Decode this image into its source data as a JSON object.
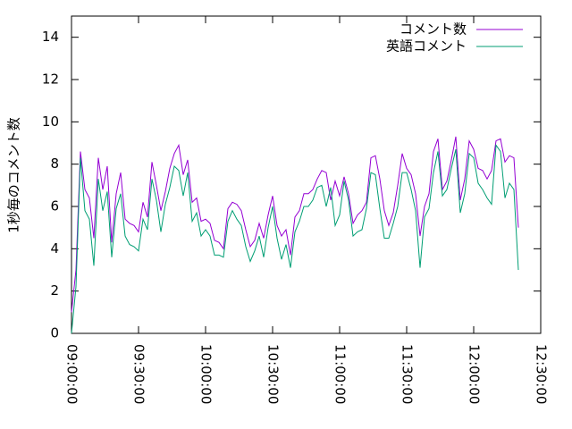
{
  "chart_data": {
    "type": "line",
    "y_label": "1秒毎のコメント数",
    "x": [
      "09:00:00",
      "09:02:00",
      "09:04:00",
      "09:06:00",
      "09:08:00",
      "09:10:00",
      "09:12:00",
      "09:14:00",
      "09:16:00",
      "09:18:00",
      "09:20:00",
      "09:22:00",
      "09:24:00",
      "09:26:00",
      "09:28:00",
      "09:30:00",
      "09:32:00",
      "09:34:00",
      "09:36:00",
      "09:38:00",
      "09:40:00",
      "09:42:00",
      "09:44:00",
      "09:46:00",
      "09:48:00",
      "09:50:00",
      "09:52:00",
      "09:54:00",
      "09:56:00",
      "09:58:00",
      "10:00:00",
      "10:02:00",
      "10:04:00",
      "10:06:00",
      "10:08:00",
      "10:10:00",
      "10:12:00",
      "10:14:00",
      "10:16:00",
      "10:18:00",
      "10:20:00",
      "10:22:00",
      "10:24:00",
      "10:26:00",
      "10:28:00",
      "10:30:00",
      "10:32:00",
      "10:34:00",
      "10:36:00",
      "10:38:00",
      "10:40:00",
      "10:42:00",
      "10:44:00",
      "10:46:00",
      "10:48:00",
      "10:50:00",
      "10:52:00",
      "10:54:00",
      "10:56:00",
      "10:58:00",
      "11:00:00",
      "11:02:00",
      "11:04:00",
      "11:06:00",
      "11:08:00",
      "11:10:00",
      "11:12:00",
      "11:14:00",
      "11:16:00",
      "11:18:00",
      "11:20:00",
      "11:22:00",
      "11:24:00",
      "11:26:00",
      "11:28:00",
      "11:30:00",
      "11:32:00",
      "11:34:00",
      "11:36:00",
      "11:38:00",
      "11:40:00",
      "11:42:00",
      "11:44:00",
      "11:46:00",
      "11:48:00",
      "11:50:00",
      "11:52:00",
      "11:54:00",
      "11:56:00",
      "11:58:00",
      "12:00:00",
      "12:02:00",
      "12:04:00",
      "12:06:00",
      "12:08:00",
      "12:10:00",
      "12:12:00",
      "12:14:00",
      "12:16:00",
      "12:18:00",
      "12:20:00"
    ],
    "series": [
      {
        "name": "コメント数",
        "color": "#9400d3",
        "values": [
          1.0,
          3.0,
          8.6,
          6.8,
          6.4,
          4.5,
          8.3,
          6.8,
          7.9,
          4.3,
          6.6,
          7.6,
          5.4,
          5.2,
          5.1,
          4.8,
          6.2,
          5.5,
          8.1,
          7.0,
          5.8,
          6.7,
          7.8,
          8.5,
          8.9,
          7.5,
          8.2,
          6.2,
          6.4,
          5.3,
          5.4,
          5.2,
          4.4,
          4.3,
          4.0,
          5.9,
          6.2,
          6.1,
          5.8,
          4.9,
          4.1,
          4.4,
          5.2,
          4.5,
          5.6,
          6.5,
          5.1,
          4.6,
          4.9,
          3.7,
          5.5,
          5.8,
          6.6,
          6.6,
          6.8,
          7.3,
          7.7,
          7.6,
          6.3,
          7.2,
          6.5,
          7.4,
          6.6,
          5.2,
          5.6,
          5.8,
          6.2,
          8.3,
          8.4,
          7.3,
          5.8,
          5.1,
          5.7,
          7.0,
          8.5,
          7.8,
          7.5,
          6.6,
          4.6,
          6.0,
          6.6,
          8.6,
          9.2,
          6.8,
          7.2,
          8.2,
          9.3,
          6.3,
          7.3,
          9.1,
          8.7,
          7.8,
          7.7,
          7.3,
          7.7,
          9.1,
          9.2,
          8.1,
          8.4,
          8.3,
          5.0
        ]
      },
      {
        "name": "英語コメント",
        "color": "#009e73",
        "values": [
          0,
          2.2,
          8.3,
          5.8,
          5.4,
          3.2,
          7.3,
          5.8,
          6.7,
          3.6,
          5.9,
          6.6,
          4.6,
          4.2,
          4.1,
          3.9,
          5.4,
          4.9,
          7.3,
          6.3,
          4.8,
          6.1,
          6.9,
          7.9,
          7.7,
          6.5,
          7.6,
          5.3,
          5.7,
          4.6,
          4.9,
          4.6,
          3.7,
          3.7,
          3.6,
          5.3,
          5.8,
          5.4,
          5.1,
          4.1,
          3.4,
          3.9,
          4.6,
          3.6,
          5.0,
          6.0,
          4.5,
          3.5,
          4.2,
          3.1,
          4.8,
          5.3,
          6.0,
          6.0,
          6.3,
          6.9,
          7.0,
          6.0,
          6.9,
          5.1,
          5.6,
          7.2,
          6.3,
          4.6,
          4.8,
          4.9,
          5.9,
          7.6,
          7.5,
          5.9,
          4.5,
          4.5,
          5.2,
          6.0,
          7.6,
          7.6,
          6.8,
          5.8,
          3.1,
          5.5,
          5.9,
          7.6,
          8.6,
          6.5,
          6.8,
          7.8,
          8.7,
          5.7,
          6.6,
          8.5,
          8.3,
          7.1,
          6.8,
          6.4,
          6.1,
          8.9,
          8.6,
          6.4,
          7.1,
          6.8,
          3.0
        ]
      }
    ],
    "xlim": [
      "09:00:00",
      "12:30:00"
    ],
    "xticks": [
      "09:00:00",
      "09:30:00",
      "10:00:00",
      "10:30:00",
      "11:00:00",
      "11:30:00",
      "12:00:00",
      "12:30:00"
    ],
    "ylim": [
      0,
      15
    ],
    "yticks": [
      0,
      2,
      4,
      6,
      8,
      10,
      12,
      14
    ],
    "legend": "top-right"
  }
}
